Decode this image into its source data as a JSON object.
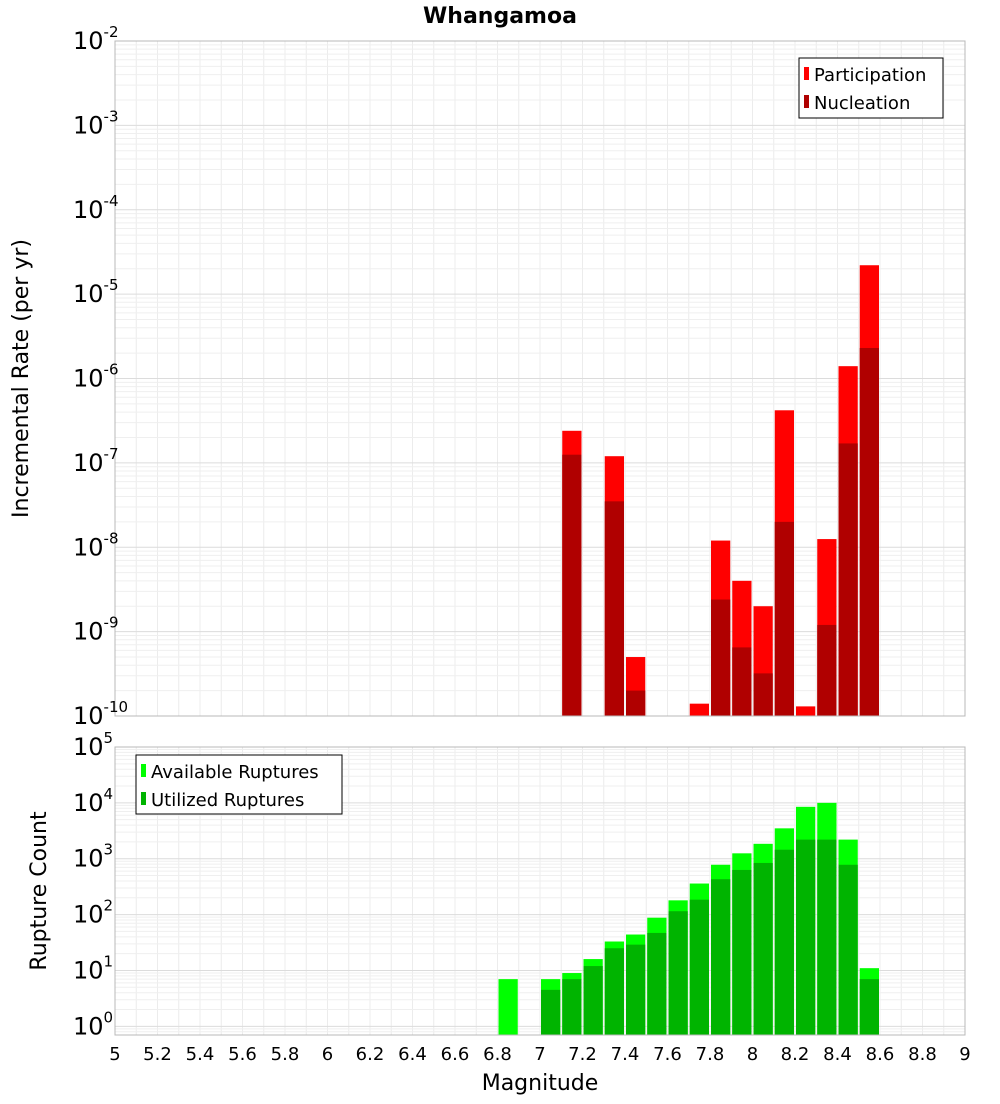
{
  "title": "Whangamoa",
  "xlabel": "Magnitude",
  "x_ticks": [
    "5",
    "5.2",
    "5.4",
    "5.6",
    "5.8",
    "6",
    "6.2",
    "6.4",
    "6.6",
    "6.8",
    "7",
    "7.2",
    "7.4",
    "7.6",
    "7.8",
    "8",
    "8.2",
    "8.4",
    "8.6",
    "8.8",
    "9"
  ],
  "chart_data": [
    {
      "type": "bar",
      "title": "Whangamoa",
      "xlabel": "Magnitude",
      "ylabel": "Incremental Rate (per yr)",
      "y_scale": "log",
      "ylim": [
        1e-10,
        0.01
      ],
      "xlim": [
        5,
        9
      ],
      "bin_width": 0.1,
      "grid": true,
      "legend_position": "top-right",
      "y_tick_exponents": [
        "-2",
        "-3",
        "-4",
        "-5",
        "-6",
        "-7",
        "-8",
        "-9",
        "-10"
      ],
      "colors": {
        "Participation": "#ff0000",
        "Nucleation": "#b00000"
      },
      "x": [
        7.15,
        7.35,
        7.45,
        7.75,
        7.85,
        7.95,
        8.05,
        8.15,
        8.25,
        8.35,
        8.45,
        8.55
      ],
      "series": [
        {
          "name": "Participation",
          "values": [
            2.4e-07,
            1.2e-07,
            5e-10,
            1.4e-10,
            1.2e-08,
            4e-09,
            2e-09,
            4.2e-07,
            1.3e-10,
            1.25e-08,
            1.4e-06,
            2.2e-05
          ]
        },
        {
          "name": "Nucleation",
          "values": [
            1.25e-07,
            3.5e-08,
            2e-10,
            null,
            2.4e-09,
            6.5e-10,
            3.2e-10,
            2e-08,
            null,
            1.2e-09,
            1.7e-07,
            2.3e-06
          ]
        }
      ]
    },
    {
      "type": "bar",
      "xlabel": "Magnitude",
      "ylabel": "Rupture Count",
      "y_scale": "log",
      "ylim": [
        0.7,
        100000
      ],
      "xlim": [
        5,
        9
      ],
      "bin_width": 0.1,
      "grid": true,
      "legend_position": "top-left",
      "y_tick_exponents": [
        "5",
        "4",
        "3",
        "2",
        "1",
        "0"
      ],
      "colors": {
        "Available Ruptures": "#00ff00",
        "Utilized Ruptures": "#00b400"
      },
      "x": [
        6.85,
        7.05,
        7.15,
        7.25,
        7.35,
        7.45,
        7.55,
        7.65,
        7.75,
        7.85,
        7.95,
        8.05,
        8.15,
        8.25,
        8.35,
        8.45,
        8.55
      ],
      "series": [
        {
          "name": "Available Ruptures",
          "values": [
            7,
            7,
            9,
            16,
            33,
            44,
            88,
            180,
            360,
            780,
            1250,
            1850,
            3500,
            8500,
            10000,
            2200,
            11
          ]
        },
        {
          "name": "Utilized Ruptures",
          "values": [
            null,
            4.5,
            7,
            12,
            25,
            29,
            47,
            115,
            185,
            430,
            630,
            840,
            1450,
            2200,
            2200,
            780,
            7
          ]
        }
      ]
    }
  ]
}
